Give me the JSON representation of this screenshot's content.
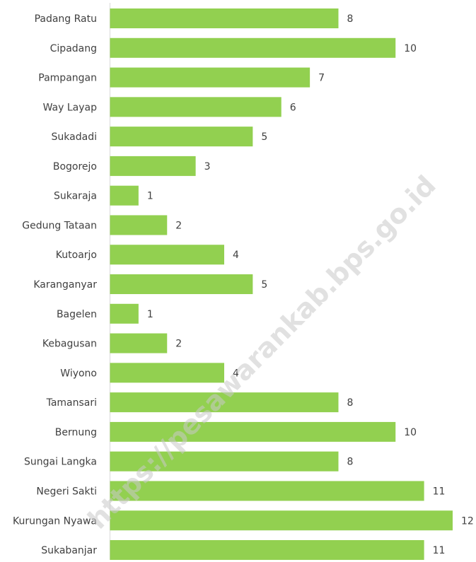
{
  "chart_data": {
    "type": "barh",
    "categories": [
      "Padang Ratu",
      "Cipadang",
      "Pampangan",
      "Way Layap",
      "Sukadadi",
      "Bogorejo",
      "Sukaraja",
      "Gedung Tataan",
      "Kutoarjo",
      "Karanganyar",
      "Bagelen",
      "Kebagusan",
      "Wiyono",
      "Tamansari",
      "Bernung",
      "Sungai Langka",
      "Negeri Sakti",
      "Kurungan Nyawa",
      "Sukabanjar"
    ],
    "values": [
      8,
      10,
      7,
      6,
      5,
      3,
      1,
      2,
      4,
      5,
      1,
      2,
      4,
      8,
      10,
      8,
      11,
      12,
      11
    ],
    "color": "#92d050",
    "xlim": [
      0,
      12
    ],
    "watermark": "https://pesawarankab.bps.go.id"
  }
}
